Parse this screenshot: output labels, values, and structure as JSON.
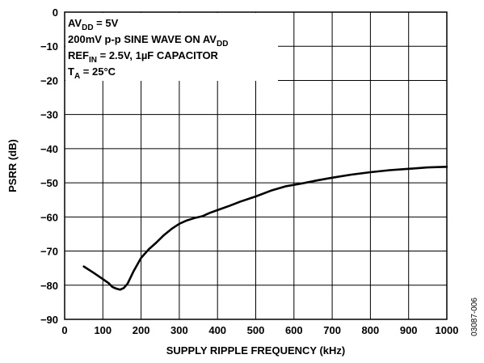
{
  "chart_data": {
    "type": "line",
    "xlabel": "SUPPLY RIPPLE FREQUENCY (kHz)",
    "ylabel": "PSRR (dB)",
    "xlim": [
      0,
      1000
    ],
    "ylim": [
      -90,
      0
    ],
    "x_ticks": [
      0,
      100,
      200,
      300,
      400,
      500,
      600,
      700,
      800,
      900,
      1000
    ],
    "y_ticks": [
      0,
      -10,
      -20,
      -30,
      -40,
      -50,
      -60,
      -70,
      -80,
      -90
    ],
    "x_tick_labels": [
      "0",
      "100",
      "200",
      "300",
      "400",
      "500",
      "600",
      "700",
      "800",
      "900",
      "1000"
    ],
    "y_tick_labels": [
      "0",
      "−10",
      "−20",
      "−30",
      "−40",
      "−50",
      "−60",
      "−70",
      "−80",
      "−90"
    ],
    "grid": true,
    "legend": "none",
    "annotation": {
      "line1": {
        "main": "AV",
        "sub": "DD",
        "rest": " = 5V"
      },
      "line2": {
        "main": "200mV p-p SINE WAVE ON AV",
        "sub": "DD",
        "rest": ""
      },
      "line3": {
        "main": "REF",
        "sub": "IN",
        "rest": " = 2.5V, 1µF CAPACITOR"
      },
      "line4": {
        "main": "T",
        "sub": "A",
        "rest": " = 25°C"
      }
    },
    "figure_code": "03087-006",
    "series": [
      {
        "x": [
          50,
          75,
          100,
          115,
          125,
          135,
          145,
          155,
          165,
          180,
          200,
          220,
          240,
          260,
          280,
          300,
          320,
          340,
          360,
          380,
          400,
          430,
          460,
          500,
          540,
          580,
          620,
          660,
          700,
          750,
          800,
          850,
          900,
          950,
          1000
        ],
        "y": [
          -74.5,
          -76.3,
          -78.2,
          -79.4,
          -80.5,
          -81.0,
          -81.3,
          -80.8,
          -79.5,
          -76,
          -72,
          -69.5,
          -67.5,
          -65.3,
          -63.5,
          -62,
          -61,
          -60.3,
          -59.8,
          -58.8,
          -58,
          -56.8,
          -55.5,
          -54,
          -52.3,
          -51,
          -50.2,
          -49.3,
          -48.5,
          -47.6,
          -46.9,
          -46.3,
          -45.9,
          -45.5,
          -45.3
        ]
      }
    ]
  }
}
